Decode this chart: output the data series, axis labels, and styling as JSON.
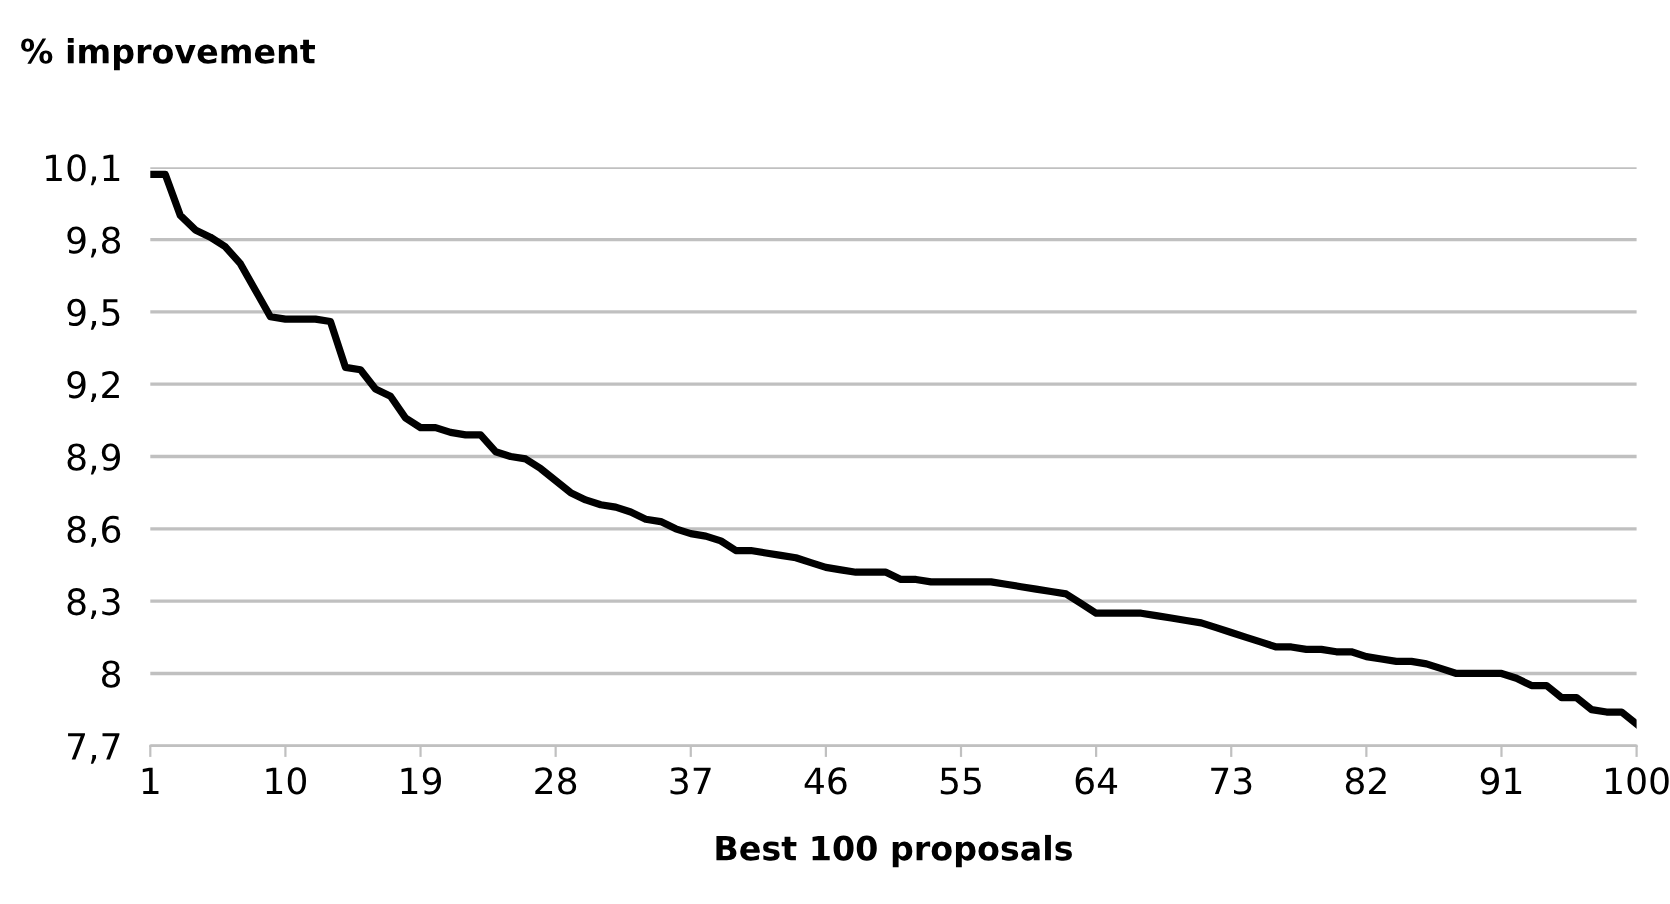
{
  "chart_data": {
    "type": "line",
    "ylabel": "% improvement",
    "xlabel": "Best 100 proposals",
    "x": [
      1,
      2,
      3,
      4,
      5,
      6,
      7,
      8,
      9,
      10,
      11,
      12,
      13,
      14,
      15,
      16,
      17,
      18,
      19,
      20,
      21,
      22,
      23,
      24,
      25,
      26,
      27,
      28,
      29,
      30,
      31,
      32,
      33,
      34,
      35,
      36,
      37,
      38,
      39,
      40,
      41,
      42,
      43,
      44,
      45,
      46,
      47,
      48,
      49,
      50,
      51,
      52,
      53,
      54,
      55,
      56,
      57,
      58,
      59,
      60,
      61,
      62,
      63,
      64,
      65,
      66,
      67,
      68,
      69,
      70,
      71,
      72,
      73,
      74,
      75,
      76,
      77,
      78,
      79,
      80,
      81,
      82,
      83,
      84,
      85,
      86,
      87,
      88,
      89,
      90,
      91,
      92,
      93,
      94,
      95,
      96,
      97,
      98,
      99,
      100
    ],
    "series": [
      {
        "color": "#000000",
        "values": [
          10.07,
          10.07,
          9.9,
          9.84,
          9.81,
          9.77,
          9.7,
          9.59,
          9.48,
          9.47,
          9.47,
          9.47,
          9.46,
          9.27,
          9.26,
          9.18,
          9.15,
          9.06,
          9.02,
          9.02,
          9.0,
          8.99,
          8.99,
          8.92,
          8.9,
          8.89,
          8.85,
          8.8,
          8.75,
          8.72,
          8.7,
          8.69,
          8.67,
          8.64,
          8.63,
          8.6,
          8.58,
          8.57,
          8.55,
          8.51,
          8.51,
          8.5,
          8.49,
          8.48,
          8.46,
          8.44,
          8.43,
          8.42,
          8.42,
          8.42,
          8.39,
          8.39,
          8.38,
          8.38,
          8.38,
          8.38,
          8.38,
          8.37,
          8.36,
          8.35,
          8.34,
          8.33,
          8.29,
          8.25,
          8.25,
          8.25,
          8.25,
          8.24,
          8.23,
          8.22,
          8.21,
          8.19,
          8.17,
          8.15,
          8.13,
          8.11,
          8.11,
          8.1,
          8.1,
          8.09,
          8.09,
          8.07,
          8.06,
          8.05,
          8.05,
          8.04,
          8.02,
          8.0,
          8.0,
          8.0,
          8.0,
          7.98,
          7.95,
          7.95,
          7.9,
          7.9,
          7.85,
          7.84,
          7.84,
          7.79
        ]
      }
    ],
    "xlim": [
      1,
      100
    ],
    "xticks": [
      1,
      10,
      19,
      28,
      37,
      46,
      55,
      64,
      73,
      82,
      91,
      100
    ],
    "ylim": [
      7.7,
      10.1
    ],
    "yticks": [
      {
        "value": 7.7,
        "label": "7,7"
      },
      8,
      {
        "value": 8.3,
        "label": "8,3"
      },
      {
        "value": 8.6,
        "label": "8,6"
      },
      {
        "value": 8.9,
        "label": "8,9"
      },
      {
        "value": 9.2,
        "label": "9,2"
      },
      {
        "value": 9.5,
        "label": "9,5"
      },
      {
        "value": 9.8,
        "label": "9,8"
      },
      {
        "value": 10.1,
        "label": "10,1"
      }
    ],
    "grid": "y",
    "marker": "none",
    "line_style": "solid"
  }
}
